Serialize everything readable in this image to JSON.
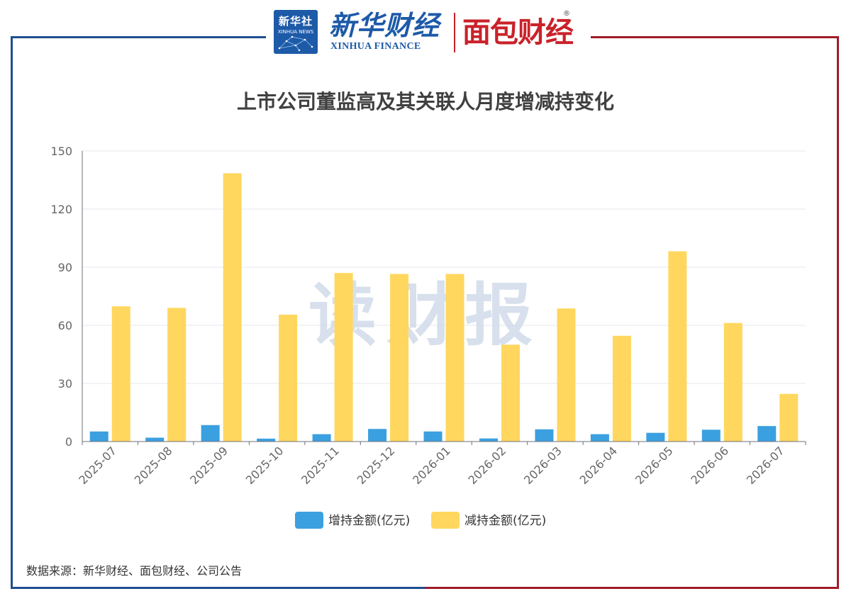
{
  "header": {
    "xinhua_badge_cn": "新华社",
    "xinhua_badge_en": "XINHUA NEWS",
    "xinhua_finance_cn": "新华财经",
    "xinhua_finance_en": "XINHUA FINANCE",
    "mianbao_logo": "面包财经",
    "registered_mark": "®"
  },
  "colors": {
    "frame_left": "#1d4f91",
    "frame_right": "#a01c2a",
    "increase": "#3ba0e0",
    "decrease": "#ffd75e"
  },
  "chart_data": {
    "type": "bar",
    "title": "上市公司董监高及其关联人月度增减持变化",
    "categories": [
      "2025-07",
      "2025-08",
      "2025-09",
      "2025-10",
      "2025-11",
      "2025-12",
      "2026-01",
      "2026-02",
      "2026-03",
      "2026-04",
      "2026-05",
      "2026-06",
      "2026-07"
    ],
    "series": [
      {
        "name": "增持金额(亿元)",
        "values": [
          5.2,
          2.0,
          8.5,
          1.5,
          3.8,
          6.5,
          5.2,
          1.6,
          6.3,
          3.8,
          4.5,
          6.1,
          8.0
        ]
      },
      {
        "name": "减持金额(亿元)",
        "values": [
          69.8,
          69.0,
          138.5,
          65.5,
          87.0,
          86.5,
          86.5,
          50.0,
          68.7,
          54.6,
          98.2,
          61.2,
          24.6
        ]
      }
    ],
    "ylim": [
      0,
      150
    ],
    "yticks": [
      0,
      30,
      60,
      90,
      120,
      150
    ],
    "grid": true,
    "legend_position": "bottom",
    "watermark": "读财报"
  },
  "footer": {
    "source": "数据来源：新华财经、面包财经、公司公告"
  }
}
